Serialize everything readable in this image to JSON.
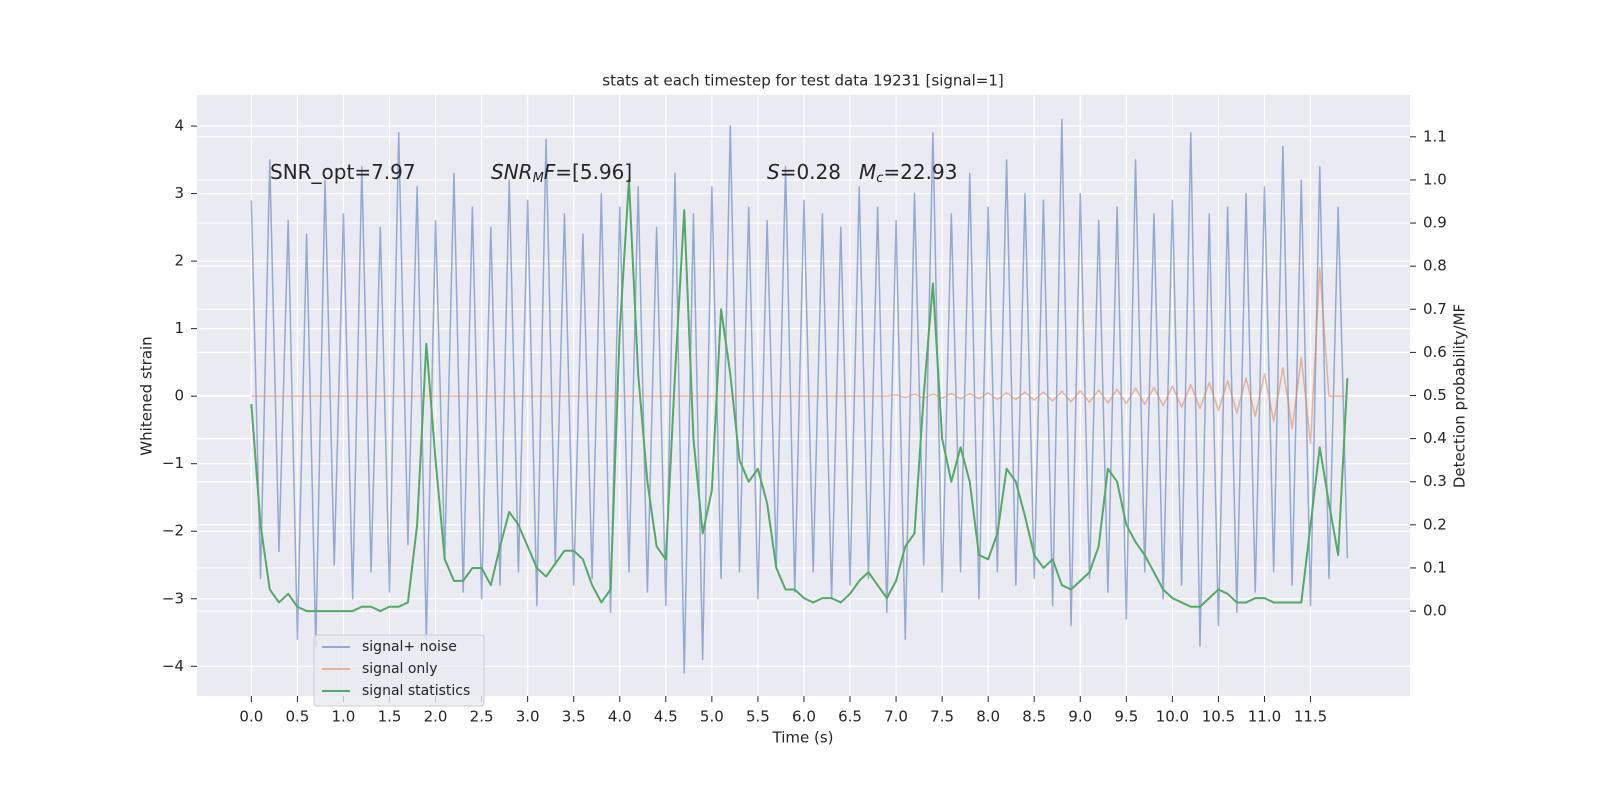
{
  "chart_data": {
    "type": "line",
    "title": "stats at each timestep for test data 19231 [signal=1]",
    "xlabel": "Time (s)",
    "ylabel": "Whitened strain",
    "y2label": "Detection probability/MF",
    "annotations": [
      [
        "SNR_opt=7.97"
      ],
      [
        "SNR",
        "M",
        "F",
        "=[5.96]"
      ],
      [
        "S",
        "=0.28"
      ],
      [
        "M",
        "c",
        "=22.93"
      ]
    ],
    "xlim": [
      -0.59,
      12.58
    ],
    "ylim": [
      -4.44,
      4.46
    ],
    "y2lim": [
      -0.197,
      1.197
    ],
    "xticks": [
      {
        "value": 0,
        "label": "0.0"
      },
      0.5,
      {
        "value": 1,
        "label": "1.0"
      },
      1.5,
      {
        "value": 2,
        "label": "2.0"
      },
      2.5,
      {
        "value": 3,
        "label": "3.0"
      },
      3.5,
      {
        "value": 4,
        "label": "4.0"
      },
      4.5,
      {
        "value": 5,
        "label": "5.0"
      },
      5.5,
      {
        "value": 6,
        "label": "6.0"
      },
      6.5,
      {
        "value": 7,
        "label": "7.0"
      },
      7.5,
      {
        "value": 8,
        "label": "8.0"
      },
      8.5,
      {
        "value": 9,
        "label": "9.0"
      },
      9.5,
      {
        "value": 10,
        "label": "10.0"
      },
      10.5,
      {
        "value": 11,
        "label": "11.0"
      },
      11.5
    ],
    "yticks": [
      {
        "value": -4,
        "label": "−4"
      },
      {
        "value": -3,
        "label": "−3"
      },
      {
        "value": -2,
        "label": "−2"
      },
      {
        "value": -1,
        "label": "−1"
      },
      0,
      1,
      2,
      3,
      4
    ],
    "y2ticks": [
      {
        "value": 0,
        "label": "0.0"
      },
      0.1,
      0.2,
      0.3,
      0.4,
      0.5,
      0.6,
      0.7,
      0.8,
      0.9,
      {
        "value": 1,
        "label": "1.0"
      },
      1.1
    ],
    "grid": true,
    "legend": "lower left",
    "x": [
      0,
      0.1,
      0.2,
      0.3,
      0.4,
      0.5,
      0.6,
      0.7,
      0.8,
      0.9,
      1,
      1.1,
      1.2,
      1.3,
      1.4,
      1.5,
      1.6,
      1.7,
      1.8,
      1.9,
      2,
      2.1,
      2.2,
      2.3,
      2.4,
      2.5,
      2.6,
      2.7,
      2.8,
      2.9,
      3,
      3.1,
      3.2,
      3.3,
      3.4,
      3.5,
      3.6,
      3.7,
      3.8,
      3.9,
      4,
      4.1,
      4.2,
      4.3,
      4.4,
      4.5,
      4.6,
      4.7,
      4.8,
      4.9,
      5,
      5.1,
      5.2,
      5.3,
      5.4,
      5.5,
      5.6,
      5.7,
      5.8,
      5.9,
      6,
      6.1,
      6.2,
      6.3,
      6.4,
      6.5,
      6.6,
      6.7,
      6.8,
      6.9,
      7,
      7.1,
      7.2,
      7.3,
      7.4,
      7.5,
      7.6,
      7.7,
      7.8,
      7.9,
      8,
      8.1,
      8.2,
      8.3,
      8.4,
      8.5,
      8.6,
      8.7,
      8.8,
      8.9,
      9,
      9.1,
      9.2,
      9.3,
      9.4,
      9.5,
      9.6,
      9.7,
      9.8,
      9.9,
      10,
      10.1,
      10.2,
      10.3,
      10.4,
      10.5,
      10.6,
      10.7,
      10.8,
      10.9,
      11,
      11.1,
      11.2,
      11.3,
      11.4,
      11.5,
      11.6,
      11.7,
      11.8,
      11.9
    ],
    "series": [
      {
        "name": "signal+ noise",
        "color": "#4c72b0",
        "values": [
          2.9,
          -2.7,
          3.5,
          -2.3,
          2.6,
          -3.6,
          2.4,
          -3.7,
          3.2,
          -2.5,
          2.7,
          -3.0,
          3.4,
          -2.6,
          2.5,
          -2.9,
          3.9,
          -2.2,
          3.1,
          -3.6,
          2.6,
          -2.4,
          3.3,
          -2.9,
          2.8,
          -3.0,
          2.5,
          -2.8,
          3.2,
          -2.6,
          2.9,
          -3.1,
          3.8,
          -2.5,
          2.7,
          -2.8,
          2.4,
          -2.7,
          3.0,
          -3.2,
          2.8,
          -2.6,
          3.1,
          -2.9,
          2.5,
          -3.1,
          3.3,
          -4.1,
          2.7,
          -3.9,
          3.1,
          -2.7,
          4.0,
          -2.6,
          2.8,
          -3.0,
          2.6,
          -2.5,
          3.4,
          -2.9,
          2.9,
          -2.6,
          2.7,
          -3.0,
          2.5,
          -2.8,
          3.1,
          -2.7,
          2.8,
          -3.2,
          2.6,
          -3.6,
          3.0,
          -2.5,
          3.9,
          -2.9,
          2.7,
          -2.6,
          3.3,
          -3.0,
          2.8,
          -2.6,
          3.5,
          -2.8,
          3.0,
          -2.7,
          2.9,
          -3.1,
          4.1,
          -3.4,
          3.0,
          -2.7,
          2.6,
          -2.9,
          2.8,
          -3.3,
          3.5,
          -2.6,
          2.7,
          -3.0,
          2.9,
          -2.8,
          3.9,
          -3.7,
          2.7,
          -3.4,
          2.8,
          -3.2,
          3.0,
          -2.9,
          3.1,
          -2.6,
          3.7,
          -2.8,
          3.2,
          -3.1,
          3.4,
          -2.7,
          2.8,
          -2.4
        ]
      },
      {
        "name": "signal only",
        "color": "#dd8452",
        "values": [
          0,
          0,
          0,
          0,
          0,
          0,
          0,
          0,
          0,
          0,
          0,
          0,
          0,
          0,
          0,
          0,
          0,
          0,
          0,
          0,
          0,
          0,
          0,
          0,
          0,
          0,
          0,
          0,
          0,
          0,
          0,
          0,
          0,
          0,
          0,
          0,
          0,
          0,
          0,
          0,
          0,
          0,
          0,
          0,
          0,
          0,
          0,
          0,
          0,
          0,
          0,
          0,
          0,
          0,
          0,
          0,
          0,
          0,
          0,
          0,
          0,
          0,
          0,
          0,
          0,
          0,
          0,
          0,
          0,
          0,
          0.02,
          -0.02,
          0.03,
          -0.03,
          0.03,
          -0.03,
          0.04,
          -0.04,
          0.04,
          -0.04,
          0.05,
          -0.05,
          0.05,
          -0.05,
          0.06,
          -0.06,
          0.06,
          -0.07,
          0.07,
          -0.08,
          0.08,
          -0.09,
          0.09,
          -0.1,
          0.1,
          -0.11,
          0.12,
          -0.12,
          0.13,
          -0.14,
          0.15,
          -0.16,
          0.17,
          -0.18,
          0.2,
          -0.21,
          0.23,
          -0.25,
          0.27,
          -0.3,
          0.33,
          -0.37,
          0.42,
          -0.48,
          0.57,
          -0.7,
          1.9,
          0,
          0,
          0
        ]
      },
      {
        "name": "signal statistics",
        "color": "#55a868",
        "axis": "y2",
        "values": [
          0.48,
          0.2,
          0.05,
          0.02,
          0.04,
          0.01,
          0,
          0,
          0,
          0,
          0,
          0,
          0.01,
          0.01,
          0,
          0.01,
          0.01,
          0.02,
          0.2,
          0.62,
          0.35,
          0.12,
          0.07,
          0.07,
          0.1,
          0.1,
          0.06,
          0.15,
          0.23,
          0.2,
          0.15,
          0.1,
          0.08,
          0.11,
          0.14,
          0.14,
          0.12,
          0.06,
          0.02,
          0.05,
          0.65,
          1.0,
          0.55,
          0.3,
          0.15,
          0.12,
          0.55,
          0.93,
          0.4,
          0.18,
          0.28,
          0.7,
          0.55,
          0.35,
          0.3,
          0.33,
          0.25,
          0.1,
          0.05,
          0.05,
          0.03,
          0.02,
          0.03,
          0.03,
          0.02,
          0.04,
          0.07,
          0.09,
          0.06,
          0.03,
          0.07,
          0.15,
          0.18,
          0.5,
          0.76,
          0.4,
          0.3,
          0.38,
          0.3,
          0.13,
          0.12,
          0.18,
          0.33,
          0.3,
          0.22,
          0.13,
          0.1,
          0.12,
          0.06,
          0.05,
          0.07,
          0.09,
          0.15,
          0.33,
          0.3,
          0.2,
          0.16,
          0.13,
          0.09,
          0.05,
          0.03,
          0.02,
          0.01,
          0.01,
          0.03,
          0.05,
          0.04,
          0.02,
          0.02,
          0.03,
          0.03,
          0.02,
          0.02,
          0.02,
          0.02,
          0.2,
          0.38,
          0.25,
          0.13,
          0.54
        ]
      }
    ]
  }
}
